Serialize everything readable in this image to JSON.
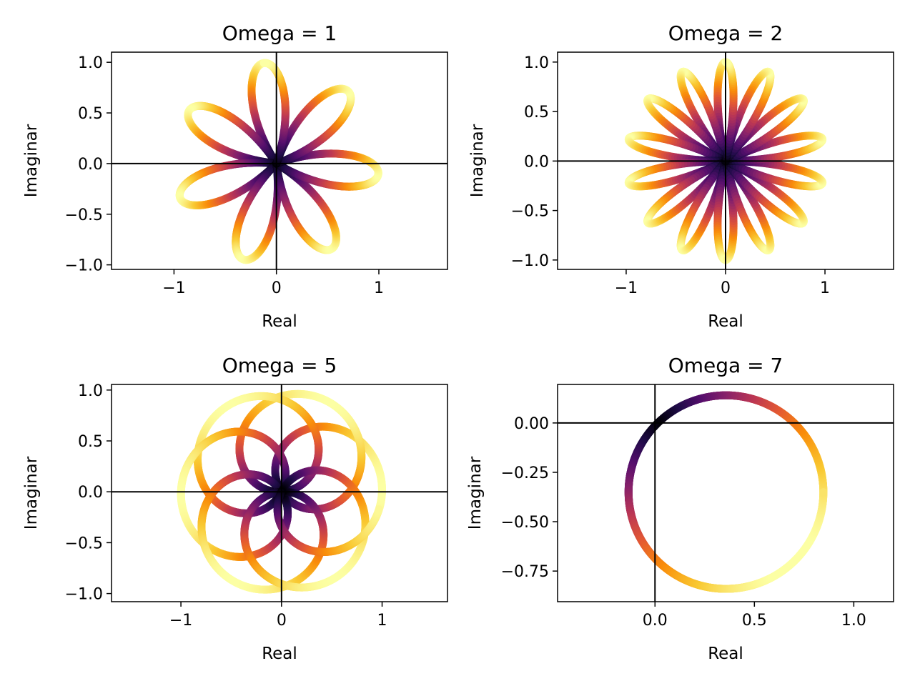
{
  "chart_data": [
    {
      "type": "line",
      "title": "Omega = 1",
      "xlabel": "Real",
      "ylabel": "Imaginar",
      "xlim": [
        -1.61,
        1.67
      ],
      "ylim": [
        -1.045,
        1.1
      ],
      "xticks": [
        {
          "v": -1,
          "label": "−1"
        },
        {
          "v": 0,
          "label": "0"
        },
        {
          "v": 1,
          "label": "1"
        }
      ],
      "yticks": [
        {
          "v": 1.0,
          "label": "1.0"
        },
        {
          "v": 0.5,
          "label": "0.5"
        },
        {
          "v": 0.0,
          "label": "0.0"
        },
        {
          "v": -0.5,
          "label": "−0.5"
        },
        {
          "v": -1.0,
          "label": "−1.0"
        }
      ],
      "curve": {
        "form": "rose",
        "petals": 7,
        "radius": 1.0,
        "rotation_deg": 97,
        "omega": 1
      },
      "colormap": "inferno",
      "crosshair": [
        0,
        0
      ]
    },
    {
      "type": "line",
      "title": "Omega = 2",
      "xlabel": "Real",
      "ylabel": "Imaginar",
      "xlim": [
        -1.69,
        1.69
      ],
      "ylim": [
        -1.095,
        1.1
      ],
      "xticks": [
        {
          "v": -1,
          "label": "−1"
        },
        {
          "v": 0,
          "label": "0"
        },
        {
          "v": 1,
          "label": "1"
        }
      ],
      "yticks": [
        {
          "v": 1.0,
          "label": "1.0"
        },
        {
          "v": 0.5,
          "label": "0.5"
        },
        {
          "v": 0.0,
          "label": "0.0"
        },
        {
          "v": -0.5,
          "label": "−0.5"
        },
        {
          "v": -1.0,
          "label": "−1.0"
        }
      ],
      "curve": {
        "form": "rose",
        "petals": 14,
        "radius": 1.0,
        "rotation_deg": 90,
        "omega": 2
      },
      "colormap": "inferno",
      "crosshair": [
        0,
        0
      ]
    },
    {
      "type": "line",
      "title": "Omega = 5",
      "xlabel": "Real",
      "ylabel": "Imaginar",
      "xlim": [
        -1.69,
        1.65
      ],
      "ylim": [
        -1.08,
        1.055
      ],
      "xticks": [
        {
          "v": -1,
          "label": "−1"
        },
        {
          "v": 0,
          "label": "0"
        },
        {
          "v": 1,
          "label": "1"
        }
      ],
      "yticks": [
        {
          "v": 1.0,
          "label": "1.0"
        },
        {
          "v": 0.5,
          "label": "0.5"
        },
        {
          "v": 0.0,
          "label": "0.0"
        },
        {
          "v": -0.5,
          "label": "−0.5"
        },
        {
          "v": -1.0,
          "label": "−1.0"
        }
      ],
      "curve": {
        "form": "loops",
        "loops": 7,
        "radius": 1.0,
        "omega": 5
      },
      "colormap": "inferno",
      "crosshair": [
        0,
        0
      ]
    },
    {
      "type": "line",
      "title": "Omega = 7",
      "xlabel": "Real",
      "ylabel": "Imaginar",
      "xlim": [
        -0.49,
        1.2
      ],
      "ylim": [
        -0.905,
        0.195
      ],
      "xticks": [
        {
          "v": 0.0,
          "label": "0.0"
        },
        {
          "v": 0.5,
          "label": "0.5"
        },
        {
          "v": 1.0,
          "label": "1.0"
        }
      ],
      "yticks": [
        {
          "v": 0.0,
          "label": "0.00"
        },
        {
          "v": -0.25,
          "label": "−0.25"
        },
        {
          "v": -0.5,
          "label": "−0.50"
        },
        {
          "v": -0.75,
          "label": "−0.75"
        }
      ],
      "curve": {
        "form": "circle",
        "center": [
          0.357,
          -0.35
        ],
        "radius": 0.49,
        "omega": 7
      },
      "colormap": "inferno",
      "crosshair": [
        0,
        0
      ]
    }
  ]
}
